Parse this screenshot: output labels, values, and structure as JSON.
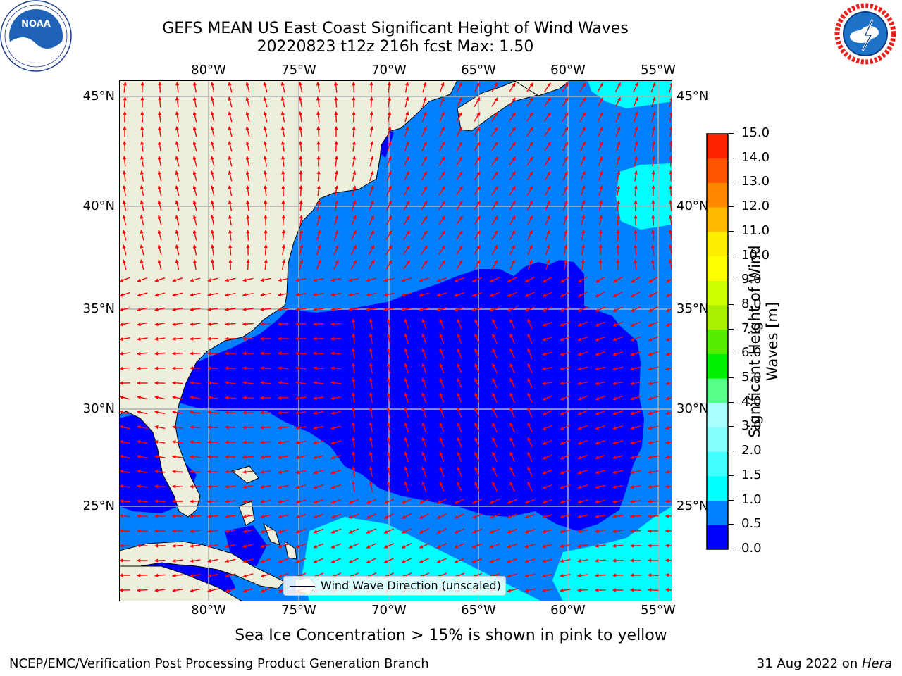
{
  "title_line1": "GEFS MEAN US East Coast Significant Height of Wind Waves",
  "title_line2": "20220823 t12z 216h fcst   Max: 1.50",
  "subtitle": "Sea Ice Concentration > 15% is shown in pink to yellow",
  "footer_left": "NCEP/EMC/Verification Post Processing Product Generation Branch",
  "footer_right_date": "31 Aug 2022 on ",
  "footer_right_host": "Hera",
  "legend_label": "Wind Wave Direction (unscaled)",
  "logos": {
    "left": "noaa-logo",
    "right": "national-weather-service-logo"
  },
  "map": {
    "lon_labels": [
      "80°W",
      "75°W",
      "70°W",
      "65°W",
      "60°W",
      "55°W"
    ],
    "lat_labels": [
      "45°N",
      "40°N",
      "35°N",
      "30°N",
      "25°N"
    ],
    "lon_values": [
      -80,
      -75,
      -70,
      -65,
      -60,
      -55
    ],
    "lat_values": [
      45,
      40,
      35,
      30,
      25
    ],
    "extent": {
      "lon_min": -85,
      "lon_max": -54.3,
      "lat_min": 20.5,
      "lat_max": 45.8
    },
    "land_color": "#eeeedc",
    "arrow_color": "#ff0000",
    "coastline_color": "#000000",
    "grid_color": "#b0b0b0"
  },
  "colorbar": {
    "label": "Significant Height of Wind Waves [m]",
    "ticks": [
      "0.0",
      "0.5",
      "1.0",
      "1.5",
      "2.0",
      "3.0",
      "4.0",
      "5.0",
      "6.0",
      "7.0",
      "8.0",
      "9.0",
      "10.0",
      "11.0",
      "12.0",
      "13.0",
      "14.0",
      "15.0"
    ],
    "colors": [
      "#0000ff",
      "#0080ff",
      "#00ffff",
      "#44ffff",
      "#88ffff",
      "#aaffff",
      "#55ff88",
      "#00ee00",
      "#55ee00",
      "#aaee00",
      "#ccff00",
      "#ffff00",
      "#ffee00",
      "#ffbb00",
      "#ff8800",
      "#ff5500",
      "#ff2200",
      "#ff0000"
    ]
  }
}
